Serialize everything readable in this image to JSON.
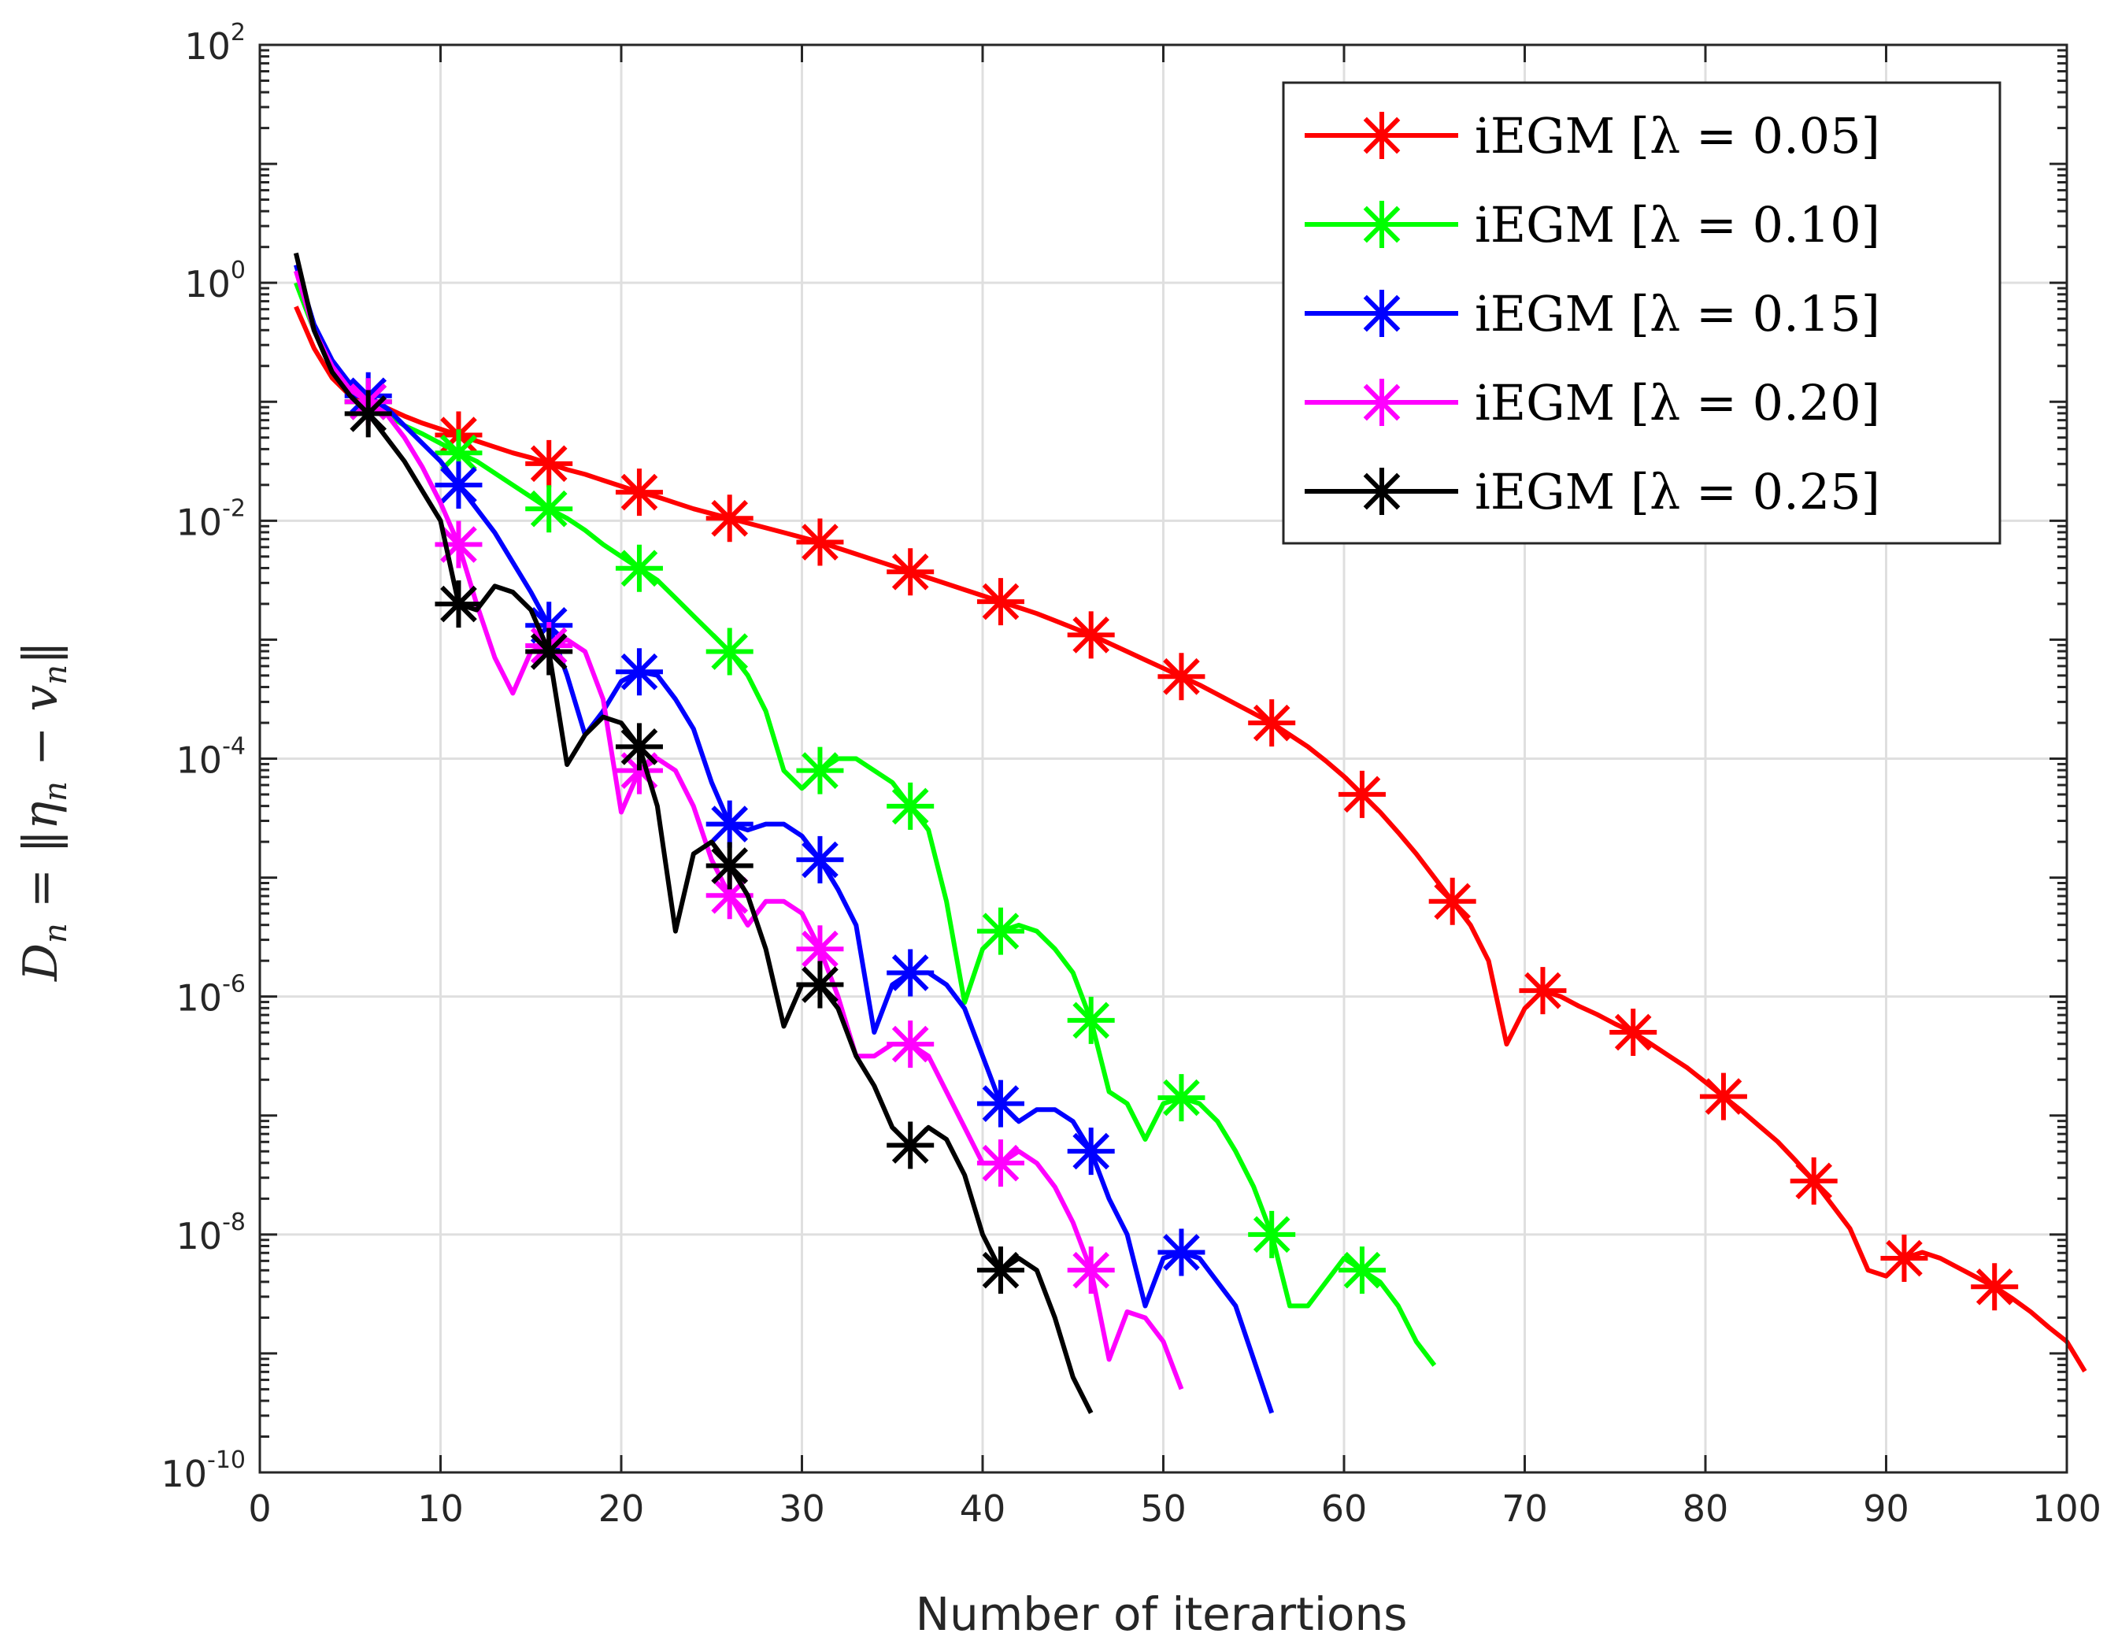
{
  "chart_data": {
    "type": "line",
    "xlabel": "Number of iterartions",
    "ylabel": {
      "main": "D",
      "sub_n": "n",
      "eq": " = ‖",
      "eta": "η",
      "sub_n2": "n",
      "minus": " − ",
      "v": "v",
      "sub_n3": "n",
      "close": "‖"
    },
    "xlim": [
      0,
      100
    ],
    "ylim_log10": [
      -10,
      2
    ],
    "yscale": "log",
    "grid": true,
    "legend_position": "top-right",
    "x_ticks": [
      "0",
      "10",
      "20",
      "30",
      "40",
      "50",
      "60",
      "70",
      "80",
      "90",
      "100"
    ],
    "y_ticks": [
      {
        "base": "10",
        "exp": "2",
        "value_log10": 2
      },
      {
        "base": "10",
        "exp": "0",
        "value_log10": 0
      },
      {
        "base": "10",
        "exp": "-2",
        "value_log10": -2
      },
      {
        "base": "10",
        "exp": "-4",
        "value_log10": -4
      },
      {
        "base": "10",
        "exp": "-6",
        "value_log10": -6
      },
      {
        "base": "10",
        "exp": "-8",
        "value_log10": -8
      },
      {
        "base": "10",
        "exp": "-10",
        "value_log10": -10
      }
    ],
    "series": [
      {
        "name": "iEGM [λ = 0.05]",
        "color": "#ff0000",
        "x_start": 2,
        "log10_values": [
          -0.2,
          -0.55,
          -0.8,
          -0.95,
          -1.0,
          -1.05,
          -1.12,
          -1.18,
          -1.23,
          -1.28,
          -1.33,
          -1.38,
          -1.43,
          -1.47,
          -1.52,
          -1.57,
          -1.61,
          -1.66,
          -1.71,
          -1.76,
          -1.8,
          -1.85,
          -1.9,
          -1.94,
          -1.98,
          -2.02,
          -2.06,
          -2.1,
          -2.14,
          -2.18,
          -2.23,
          -2.28,
          -2.33,
          -2.38,
          -2.43,
          -2.48,
          -2.53,
          -2.58,
          -2.63,
          -2.68,
          -2.73,
          -2.78,
          -2.84,
          -2.9,
          -2.96,
          -3.03,
          -3.1,
          -3.17,
          -3.24,
          -3.31,
          -3.38,
          -3.46,
          -3.54,
          -3.62,
          -3.7,
          -3.8,
          -3.9,
          -4.02,
          -4.15,
          -4.3,
          -4.45,
          -4.62,
          -4.8,
          -5.0,
          -5.2,
          -5.4,
          -5.7,
          -6.4,
          -6.1,
          -5.95,
          -6.0,
          -6.08,
          -6.15,
          -6.23,
          -6.3,
          -6.4,
          -6.5,
          -6.6,
          -6.72,
          -6.84,
          -6.96,
          -7.09,
          -7.22,
          -7.38,
          -7.55,
          -7.75,
          -7.95,
          -8.3,
          -8.35,
          -8.2,
          -8.15,
          -8.2,
          -8.28,
          -8.36,
          -8.44,
          -8.54,
          -8.65,
          -8.78,
          -8.9,
          -9.15
        ],
        "marker_x": [
          6,
          11,
          16,
          21,
          26,
          31,
          36,
          41,
          46,
          51,
          56,
          61,
          66,
          71,
          76,
          81,
          86,
          91,
          96
        ]
      },
      {
        "name": "iEGM [λ = 0.10]",
        "color": "#00ff00",
        "x_start": 2,
        "log10_values": [
          0.0,
          -0.4,
          -0.7,
          -0.9,
          -1.0,
          -1.1,
          -1.2,
          -1.27,
          -1.35,
          -1.43,
          -1.5,
          -1.6,
          -1.7,
          -1.8,
          -1.9,
          -1.98,
          -2.08,
          -2.2,
          -2.3,
          -2.4,
          -2.5,
          -2.65,
          -2.8,
          -2.95,
          -3.1,
          -3.3,
          -3.6,
          -4.1,
          -4.25,
          -4.1,
          -4.0,
          -4.0,
          -4.1,
          -4.2,
          -4.4,
          -4.6,
          -5.2,
          -6.05,
          -5.6,
          -5.45,
          -5.4,
          -5.45,
          -5.6,
          -5.8,
          -6.2,
          -6.8,
          -6.9,
          -7.2,
          -6.9,
          -6.85,
          -6.9,
          -7.05,
          -7.3,
          -7.6,
          -8.0,
          -8.6,
          -8.6,
          -8.4,
          -8.2,
          -8.3,
          -8.4,
          -8.6,
          -8.9,
          -9.1
        ],
        "marker_x": [
          6,
          11,
          16,
          21,
          26,
          31,
          36,
          41,
          46,
          51,
          56,
          61
        ]
      },
      {
        "name": "iEGM [λ = 0.15]",
        "color": "#0000ff",
        "x_start": 2,
        "log10_values": [
          0.15,
          -0.35,
          -0.65,
          -0.85,
          -0.95,
          -1.05,
          -1.2,
          -1.35,
          -1.5,
          -1.7,
          -1.9,
          -2.1,
          -2.35,
          -2.6,
          -2.88,
          -3.3,
          -3.8,
          -3.6,
          -3.35,
          -3.27,
          -3.3,
          -3.5,
          -3.75,
          -4.2,
          -4.55,
          -4.6,
          -4.55,
          -4.55,
          -4.65,
          -4.85,
          -5.1,
          -5.4,
          -6.3,
          -5.9,
          -5.8,
          -5.8,
          -5.9,
          -6.1,
          -6.5,
          -6.9,
          -7.05,
          -6.95,
          -6.95,
          -7.05,
          -7.3,
          -7.7,
          -8.0,
          -8.6,
          -8.2,
          -8.15,
          -8.2,
          -8.4,
          -8.6,
          -9.05,
          -9.5
        ],
        "marker_x": [
          6,
          11,
          16,
          21,
          26,
          31,
          36,
          41,
          46,
          51
        ]
      },
      {
        "name": "iEGM [λ = 0.20]",
        "color": "#ff00ff",
        "x_start": 2,
        "log10_values": [
          0.1,
          -0.4,
          -0.7,
          -0.9,
          -1.0,
          -1.1,
          -1.3,
          -1.55,
          -1.85,
          -2.2,
          -2.7,
          -3.15,
          -3.45,
          -3.1,
          -3.05,
          -3.0,
          -3.1,
          -3.5,
          -4.45,
          -4.1,
          -4.0,
          -4.1,
          -4.4,
          -4.85,
          -5.15,
          -5.4,
          -5.2,
          -5.2,
          -5.3,
          -5.6,
          -6.0,
          -6.5,
          -6.5,
          -6.4,
          -6.4,
          -6.5,
          -6.8,
          -7.1,
          -7.4,
          -7.4,
          -7.3,
          -7.4,
          -7.6,
          -7.9,
          -8.3,
          -9.05,
          -8.65,
          -8.7,
          -8.9,
          -9.3
        ],
        "marker_x": [
          6,
          11,
          16,
          21,
          26,
          31,
          36,
          41,
          46
        ]
      },
      {
        "name": "iEGM [λ = 0.25]",
        "color": "#000000",
        "x_start": 2,
        "log10_values": [
          0.25,
          -0.4,
          -0.75,
          -0.95,
          -1.1,
          -1.3,
          -1.5,
          -1.75,
          -2.0,
          -2.7,
          -2.75,
          -2.55,
          -2.6,
          -2.75,
          -3.1,
          -4.05,
          -3.8,
          -3.65,
          -3.7,
          -3.9,
          -4.4,
          -5.45,
          -4.8,
          -4.7,
          -4.9,
          -5.15,
          -5.6,
          -6.25,
          -5.9,
          -5.9,
          -6.1,
          -6.5,
          -6.75,
          -7.1,
          -7.25,
          -7.1,
          -7.2,
          -7.5,
          -8.0,
          -8.3,
          -8.2,
          -8.3,
          -8.7,
          -9.2,
          -9.5
        ],
        "marker_x": [
          6,
          11,
          16,
          21,
          26,
          31,
          36,
          41
        ]
      }
    ]
  }
}
